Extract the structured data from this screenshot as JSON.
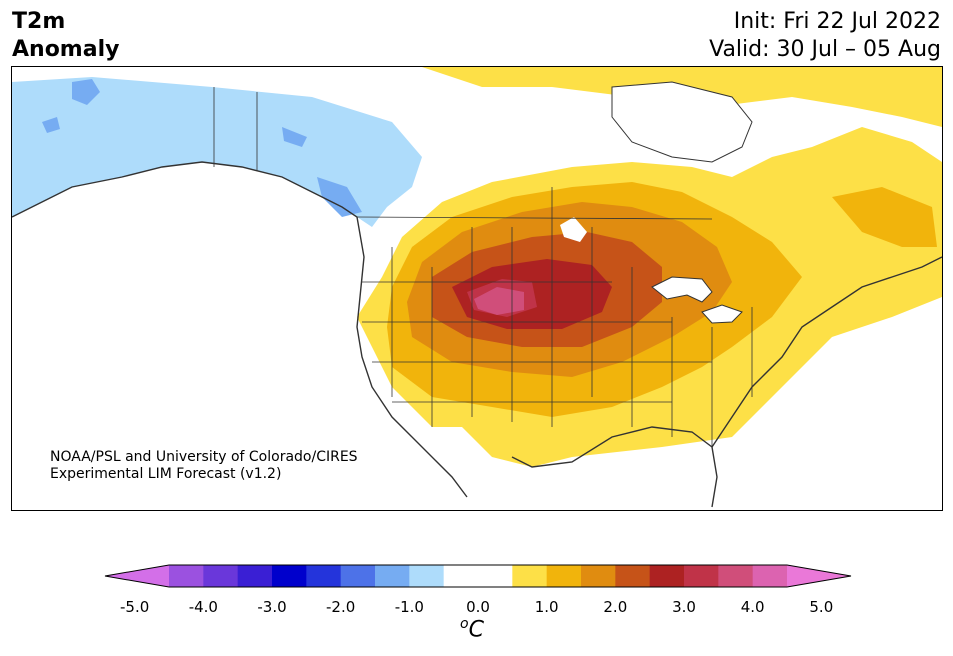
{
  "header": {
    "variable_line1": "T2m",
    "variable_line2": "Anomaly",
    "init": "Init: Fri 22 Jul 2022",
    "valid": "Valid: 30 Jul – 05 Aug"
  },
  "credit": {
    "line1": "NOAA/PSL and University of Colorado/CIRES",
    "line2": "Experimental LIM Forecast (v1.2)"
  },
  "colorbar": {
    "unit_base": "C",
    "unit_sup": "o",
    "tick_labels": [
      "-5.0",
      "-4.0",
      "-3.0",
      "-2.0",
      "-1.0",
      "0.0",
      "1.0",
      "2.0",
      "3.0",
      "4.0",
      "5.0"
    ],
    "colors": [
      "#d36fe8",
      "#9b51e0",
      "#6a37da",
      "#3a1fd4",
      "#0000cc",
      "#2434db",
      "#4d72e8",
      "#76acf2",
      "#aedcfb",
      "#ffffff",
      "#ffffff",
      "#fde047",
      "#f1b40c",
      "#e08c10",
      "#c65318",
      "#ad2222",
      "#c03348",
      "#d04e7a",
      "#dc63b0",
      "#ea78d8"
    ]
  }
}
